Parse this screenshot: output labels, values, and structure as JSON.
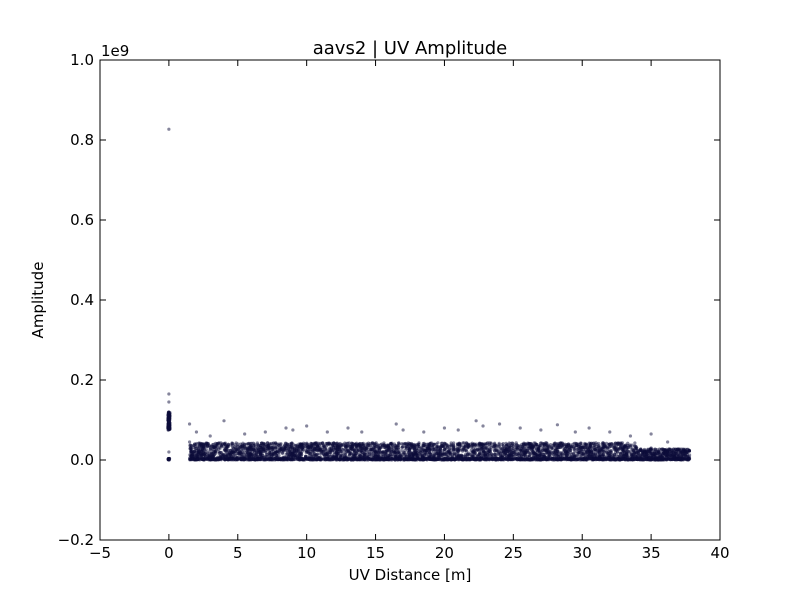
{
  "chart_data": {
    "type": "scatter",
    "title": "aavs2 | UV Amplitude",
    "xlabel": "UV Distance [m]",
    "ylabel": "Amplitude",
    "y_offset_text": "1e9",
    "xlim": [
      -5,
      40
    ],
    "ylim": [
      -0.2,
      1.0
    ],
    "y_scale_factor": 1000000000,
    "x_ticks": [
      -5,
      0,
      5,
      10,
      15,
      20,
      25,
      30,
      35,
      40
    ],
    "x_tick_labels": [
      "−5",
      "0",
      "5",
      "10",
      "15",
      "20",
      "25",
      "30",
      "35",
      "40"
    ],
    "y_ticks": [
      -0.2,
      0.0,
      0.2,
      0.4,
      0.6,
      0.8,
      1.0
    ],
    "y_tick_labels": [
      "−0.2",
      "0.0",
      "0.2",
      "0.4",
      "0.6",
      "0.8",
      "1.0"
    ],
    "grid": false,
    "marker_color": "#0b0b3a",
    "marker_alpha": 0.5,
    "series": [
      {
        "x": [
          0.0,
          0.0,
          0.0,
          0.0,
          0.0,
          0.0,
          0.0,
          0.0,
          1.5,
          2.0,
          3.0,
          4.0,
          5.5,
          7.0,
          8.5,
          9.0,
          10.0,
          11.5,
          13.0,
          14.0,
          16.5,
          17.0,
          18.5,
          20.0,
          21.0,
          22.3,
          22.8,
          24.0,
          25.5,
          27.0,
          28.2,
          29.5,
          30.5,
          32.0,
          33.5,
          35.0,
          36.2,
          1.5,
          2.5,
          3.5,
          5.0,
          6.5,
          8.0,
          9.5,
          11.0,
          12.5,
          14.0,
          15.5,
          17.0,
          18.5,
          20.0,
          21.5,
          23.0,
          24.5,
          26.0,
          27.5,
          29.0,
          30.5,
          32.0,
          33.5,
          35.0,
          36.5,
          37.5
        ],
        "y": [
          0.827,
          0.165,
          0.145,
          0.12,
          0.095,
          0.08,
          0.02,
          0.0,
          0.09,
          0.07,
          0.06,
          0.098,
          0.065,
          0.07,
          0.08,
          0.075,
          0.085,
          0.07,
          0.08,
          0.07,
          0.09,
          0.075,
          0.07,
          0.08,
          0.075,
          0.098,
          0.085,
          0.09,
          0.08,
          0.075,
          0.088,
          0.07,
          0.08,
          0.07,
          0.06,
          0.065,
          0.045,
          0.045,
          0.04,
          0.035,
          0.04,
          0.035,
          0.04,
          0.035,
          0.04,
          0.035,
          0.04,
          0.035,
          0.04,
          0.035,
          0.04,
          0.035,
          0.04,
          0.035,
          0.04,
          0.035,
          0.04,
          0.035,
          0.04,
          0.035,
          0.03,
          0.025,
          0.02
        ]
      }
    ]
  }
}
